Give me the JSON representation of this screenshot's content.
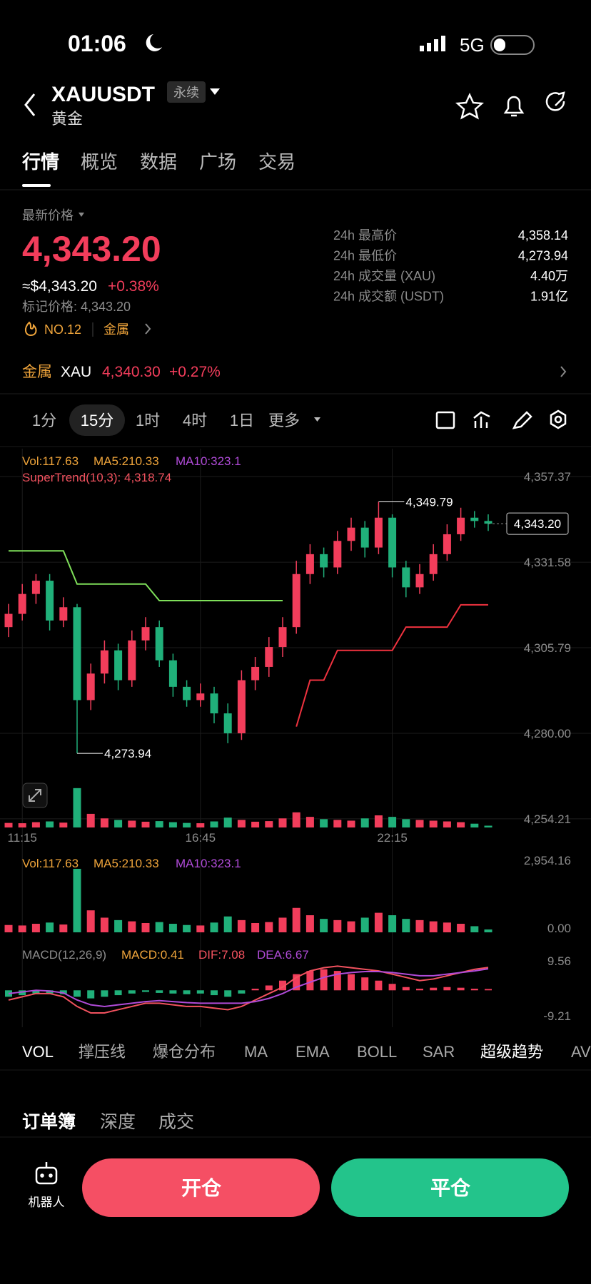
{
  "status_bar": {
    "time": "01:06",
    "network": "5G"
  },
  "header": {
    "symbol": "XAUUSDT",
    "badge": "永续",
    "name": "黄金"
  },
  "tabs": [
    "行情",
    "概览",
    "数据",
    "广场",
    "交易"
  ],
  "price_panel": {
    "label": "最新价格",
    "price": "4,343.20",
    "usd": "≈$4,343.20",
    "change": "+0.38%",
    "mark": "标记价格: 4,343.20",
    "rank": "NO.12",
    "sector": "金属"
  },
  "stats": [
    {
      "label": "24h 最高价",
      "value": "4,358.14"
    },
    {
      "label": "24h 最低价",
      "value": "4,273.94"
    },
    {
      "label": "24h 成交量 (XAU)",
      "value": "4.40万"
    },
    {
      "label": "24h 成交额 (USDT)",
      "value": "1.91亿"
    }
  ],
  "related": {
    "sector": "金属",
    "symbol": "XAU",
    "price": "4,340.30",
    "change": "+0.27%"
  },
  "intervals": [
    "1分",
    "15分",
    "1时",
    "4时",
    "1日",
    "更多"
  ],
  "chart_data": {
    "type": "candlestick",
    "up_color": "#f23d5b",
    "down_color": "#20b07a",
    "legend_vol": [
      "Vol:117.63",
      "MA5:210.33",
      "MA10:323.1"
    ],
    "supertrend_label": "SuperTrend(10,3): 4,318.74",
    "high_label": "4,349.79",
    "low_label": "4,273.94",
    "last_label": "4,343.20",
    "ylim": [
      4251.6,
      4365.8
    ],
    "yticks": [
      {
        "value": 4357.37,
        "label": "4,357.37"
      },
      {
        "value": 4331.58,
        "label": "4,331.58"
      },
      {
        "value": 4305.79,
        "label": "4,305.79"
      },
      {
        "value": 4280,
        "label": "4,280.00"
      },
      {
        "value": 4254.21,
        "label": "4,254.21"
      }
    ],
    "categories": [
      null,
      "11:15",
      null,
      null,
      null,
      null,
      null,
      null,
      null,
      null,
      null,
      null,
      null,
      null,
      "16:45",
      null,
      null,
      null,
      null,
      null,
      null,
      null,
      null,
      null,
      null,
      null,
      null,
      null,
      "22:15",
      null,
      null,
      null,
      null,
      null,
      null,
      null
    ],
    "candles": [
      [
        4312,
        4319,
        4309,
        4316
      ],
      [
        4316,
        4325,
        4314,
        4322
      ],
      [
        4322,
        4328,
        4319,
        4326
      ],
      [
        4326,
        4328,
        4311,
        4314
      ],
      [
        4314,
        4321,
        4312,
        4318
      ],
      [
        4318,
        4319,
        4273.94,
        4290
      ],
      [
        4290,
        4301,
        4287,
        4298
      ],
      [
        4298,
        4308,
        4295,
        4305
      ],
      [
        4305,
        4307,
        4293,
        4296
      ],
      [
        4296,
        4311,
        4294,
        4308
      ],
      [
        4308,
        4315,
        4305,
        4312
      ],
      [
        4312,
        4314,
        4300,
        4302
      ],
      [
        4302,
        4304,
        4291,
        4294
      ],
      [
        4294,
        4296,
        4288,
        4290
      ],
      [
        4290,
        4295,
        4288,
        4292
      ],
      [
        4292,
        4294,
        4283,
        4286
      ],
      [
        4286,
        4289,
        4277,
        4280
      ],
      [
        4280,
        4299,
        4278,
        4296
      ],
      [
        4296,
        4303,
        4293,
        4300
      ],
      [
        4300,
        4309,
        4297,
        4306
      ],
      [
        4306,
        4315,
        4303,
        4312
      ],
      [
        4312,
        4332,
        4310,
        4328
      ],
      [
        4328,
        4337,
        4325,
        4334
      ],
      [
        4334,
        4336,
        4327,
        4330
      ],
      [
        4330,
        4341,
        4328,
        4338
      ],
      [
        4338,
        4345,
        4335,
        4342
      ],
      [
        4342,
        4344,
        4333,
        4336
      ],
      [
        4336,
        4349.79,
        4334,
        4345
      ],
      [
        4345,
        4346,
        4327,
        4330
      ],
      [
        4330,
        4332,
        4321,
        4324
      ],
      [
        4324,
        4331,
        4322,
        4328
      ],
      [
        4328,
        4337,
        4326,
        4334
      ],
      [
        4334,
        4343,
        4332,
        4340
      ],
      [
        4340,
        4348,
        4338,
        4345
      ],
      [
        4345,
        4347,
        4342,
        4344
      ],
      [
        4344,
        4346,
        4341,
        4343.2
      ]
    ],
    "supertrend_up": [
      4335,
      4335,
      4335,
      4335,
      4335,
      4325,
      4325,
      4325,
      4325,
      4325,
      4325,
      4320,
      4320,
      4320,
      4320,
      4320,
      4320,
      4320,
      4320,
      4320,
      4320,
      null,
      null,
      null,
      null,
      null,
      null,
      null,
      null,
      null,
      null,
      null,
      null,
      null,
      null,
      null
    ],
    "supertrend_down": [
      null,
      null,
      null,
      null,
      null,
      null,
      null,
      null,
      null,
      null,
      null,
      null,
      null,
      null,
      null,
      null,
      null,
      null,
      null,
      null,
      null,
      4282,
      4296,
      4296,
      4305,
      4305,
      4305,
      4305,
      4305,
      4312,
      4312,
      4312,
      4312,
      4318.74,
      4318.74,
      4318.74
    ],
    "volumes": [
      300,
      280,
      350,
      400,
      320,
      2600,
      900,
      600,
      500,
      450,
      380,
      420,
      350,
      300,
      280,
      400,
      650,
      500,
      380,
      420,
      600,
      1000,
      700,
      550,
      500,
      450,
      600,
      800,
      700,
      550,
      500,
      450,
      400,
      350,
      250,
      117.63
    ],
    "vol_ylim": [
      0,
      3300
    ],
    "vol_yticks": [
      {
        "value": 2954.16,
        "label": "2,954.16"
      },
      {
        "value": 0,
        "label": "0.00"
      }
    ],
    "macd_legend": [
      "MACD(12,26,9)",
      "MACD:0.41",
      "DIF:7.08",
      "DEA:6.67"
    ],
    "macd_ylim": [
      -9.21,
      9.56
    ],
    "macd_yticks": [
      9.56,
      -9.21
    ],
    "macd_hist": [
      -2,
      -1.5,
      -1,
      -1,
      -1.2,
      -2,
      -2.5,
      -2,
      -1.5,
      -1,
      -0.5,
      -0.8,
      -1,
      -1.2,
      -1,
      -1.5,
      -2,
      -1,
      0.5,
      1.5,
      3,
      5,
      6,
      6.5,
      6,
      5,
      4,
      3,
      2,
      1,
      0.5,
      0.8,
      1,
      0.8,
      0.5,
      0.41
    ],
    "dif": [
      -3,
      -2,
      -1,
      -1,
      -2,
      -5,
      -7,
      -7,
      -6,
      -5,
      -4,
      -4,
      -4.5,
      -5,
      -5,
      -5.5,
      -6,
      -5,
      -3,
      -1,
      1,
      4,
      6,
      7,
      7.5,
      7,
      6.5,
      6,
      5,
      4,
      3,
      3.5,
      4.5,
      5.5,
      6.5,
      7.08
    ],
    "dea": [
      -1,
      -0.5,
      0,
      -0.2,
      -0.8,
      -3,
      -4.5,
      -5,
      -4.5,
      -4,
      -3.5,
      -3.2,
      -3.5,
      -3.8,
      -4,
      -4,
      -4,
      -4,
      -3.5,
      -2.5,
      -1,
      1,
      2.5,
      4,
      5,
      5.5,
      5.8,
      5.8,
      5.5,
      5,
      4.5,
      4.5,
      5,
      5.5,
      6,
      6.67
    ]
  },
  "indicators": [
    "VOL",
    "撑压线",
    "爆仓分布",
    "MA",
    "EMA",
    "BOLL",
    "SAR",
    "超级趋势",
    "AV"
  ],
  "book_tabs": [
    "订单簿",
    "深度",
    "成交"
  ],
  "bottom": {
    "robot": "机器人",
    "open": "开仓",
    "close": "平仓"
  }
}
